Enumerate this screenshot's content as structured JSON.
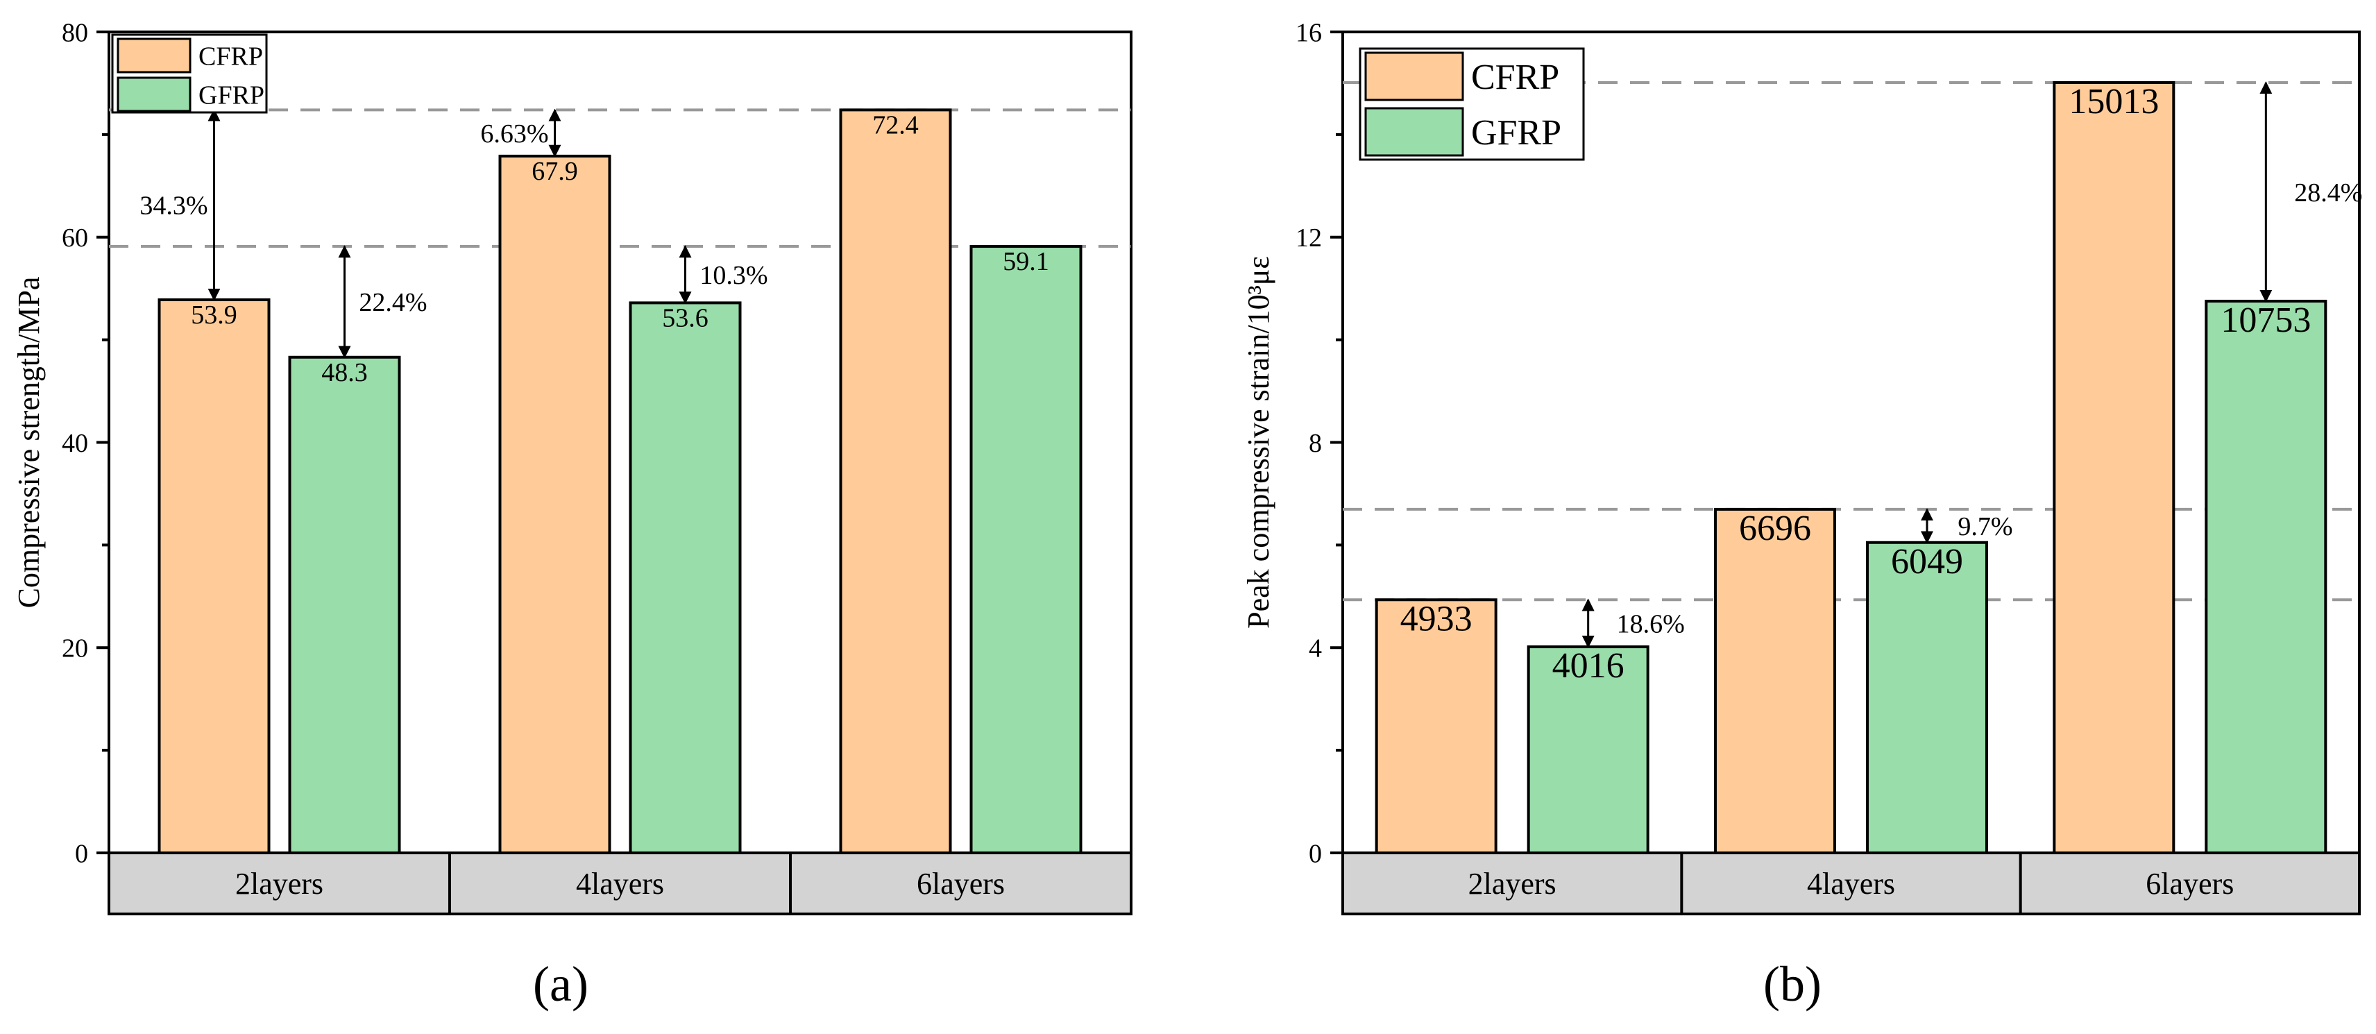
{
  "colors": {
    "cfrp": "#FFCC99",
    "gfrp": "#99DDAA",
    "category_band": "#D3D3D3",
    "guide_line": "#999999",
    "axis": "#000000"
  },
  "chart_data": [
    {
      "type": "bar",
      "panel": "(a)",
      "title": "",
      "xlabel": "",
      "ylabel": "Compressive strength/MPa",
      "ylim": [
        0,
        80
      ],
      "yticks": [
        0,
        20,
        40,
        60,
        80
      ],
      "grid": false,
      "legend_position": "top-left",
      "categories": [
        "2layers",
        "4layers",
        "6layers"
      ],
      "series": [
        {
          "name": "CFRP",
          "values": [
            53.9,
            67.9,
            72.4
          ],
          "labels": [
            "53.9",
            "67.9",
            "72.4"
          ]
        },
        {
          "name": "GFRP",
          "values": [
            48.3,
            53.6,
            59.1
          ],
          "labels": [
            "48.3",
            "53.6",
            "59.1"
          ]
        }
      ],
      "reference_lines": [
        72.4,
        59.1
      ],
      "annotations": [
        {
          "text": "34.3%",
          "series": 0,
          "category": 0,
          "from": 53.9,
          "to": 72.4,
          "text_side": "left"
        },
        {
          "text": "22.4%",
          "series": 1,
          "category": 0,
          "from": 48.3,
          "to": 59.1,
          "text_side": "right"
        },
        {
          "text": "6.63%",
          "series": 0,
          "category": 1,
          "from": 67.9,
          "to": 72.4,
          "text_side": "left"
        },
        {
          "text": "10.3%",
          "series": 1,
          "category": 1,
          "from": 53.6,
          "to": 59.1,
          "text_side": "right"
        }
      ]
    },
    {
      "type": "bar",
      "panel": "(b)",
      "title": "",
      "xlabel": "",
      "ylabel": "Peak compressive strain/10³με",
      "ylim": [
        0,
        16
      ],
      "yticks": [
        0,
        4,
        8,
        12,
        16
      ],
      "grid": false,
      "legend_position": "top-left",
      "categories": [
        "2layers",
        "4layers",
        "6layers"
      ],
      "series": [
        {
          "name": "CFRP",
          "values": [
            4.933,
            6.696,
            15.013
          ],
          "labels": [
            "4933",
            "6696",
            "15013"
          ]
        },
        {
          "name": "GFRP",
          "values": [
            4.016,
            6.049,
            10.753
          ],
          "labels": [
            "4016",
            "6049",
            "10753"
          ]
        }
      ],
      "reference_lines": [
        15.013,
        6.696,
        4.933
      ],
      "annotations": [
        {
          "text": "18.6%",
          "series": 1,
          "category": 0,
          "from": 4.016,
          "to": 4.933,
          "text_side": "right"
        },
        {
          "text": "9.7%",
          "series": 1,
          "category": 1,
          "from": 6.049,
          "to": 6.696,
          "text_side": "right"
        },
        {
          "text": "28.4%",
          "series": 1,
          "category": 2,
          "from": 10.753,
          "to": 15.013,
          "text_side": "right"
        }
      ]
    }
  ]
}
